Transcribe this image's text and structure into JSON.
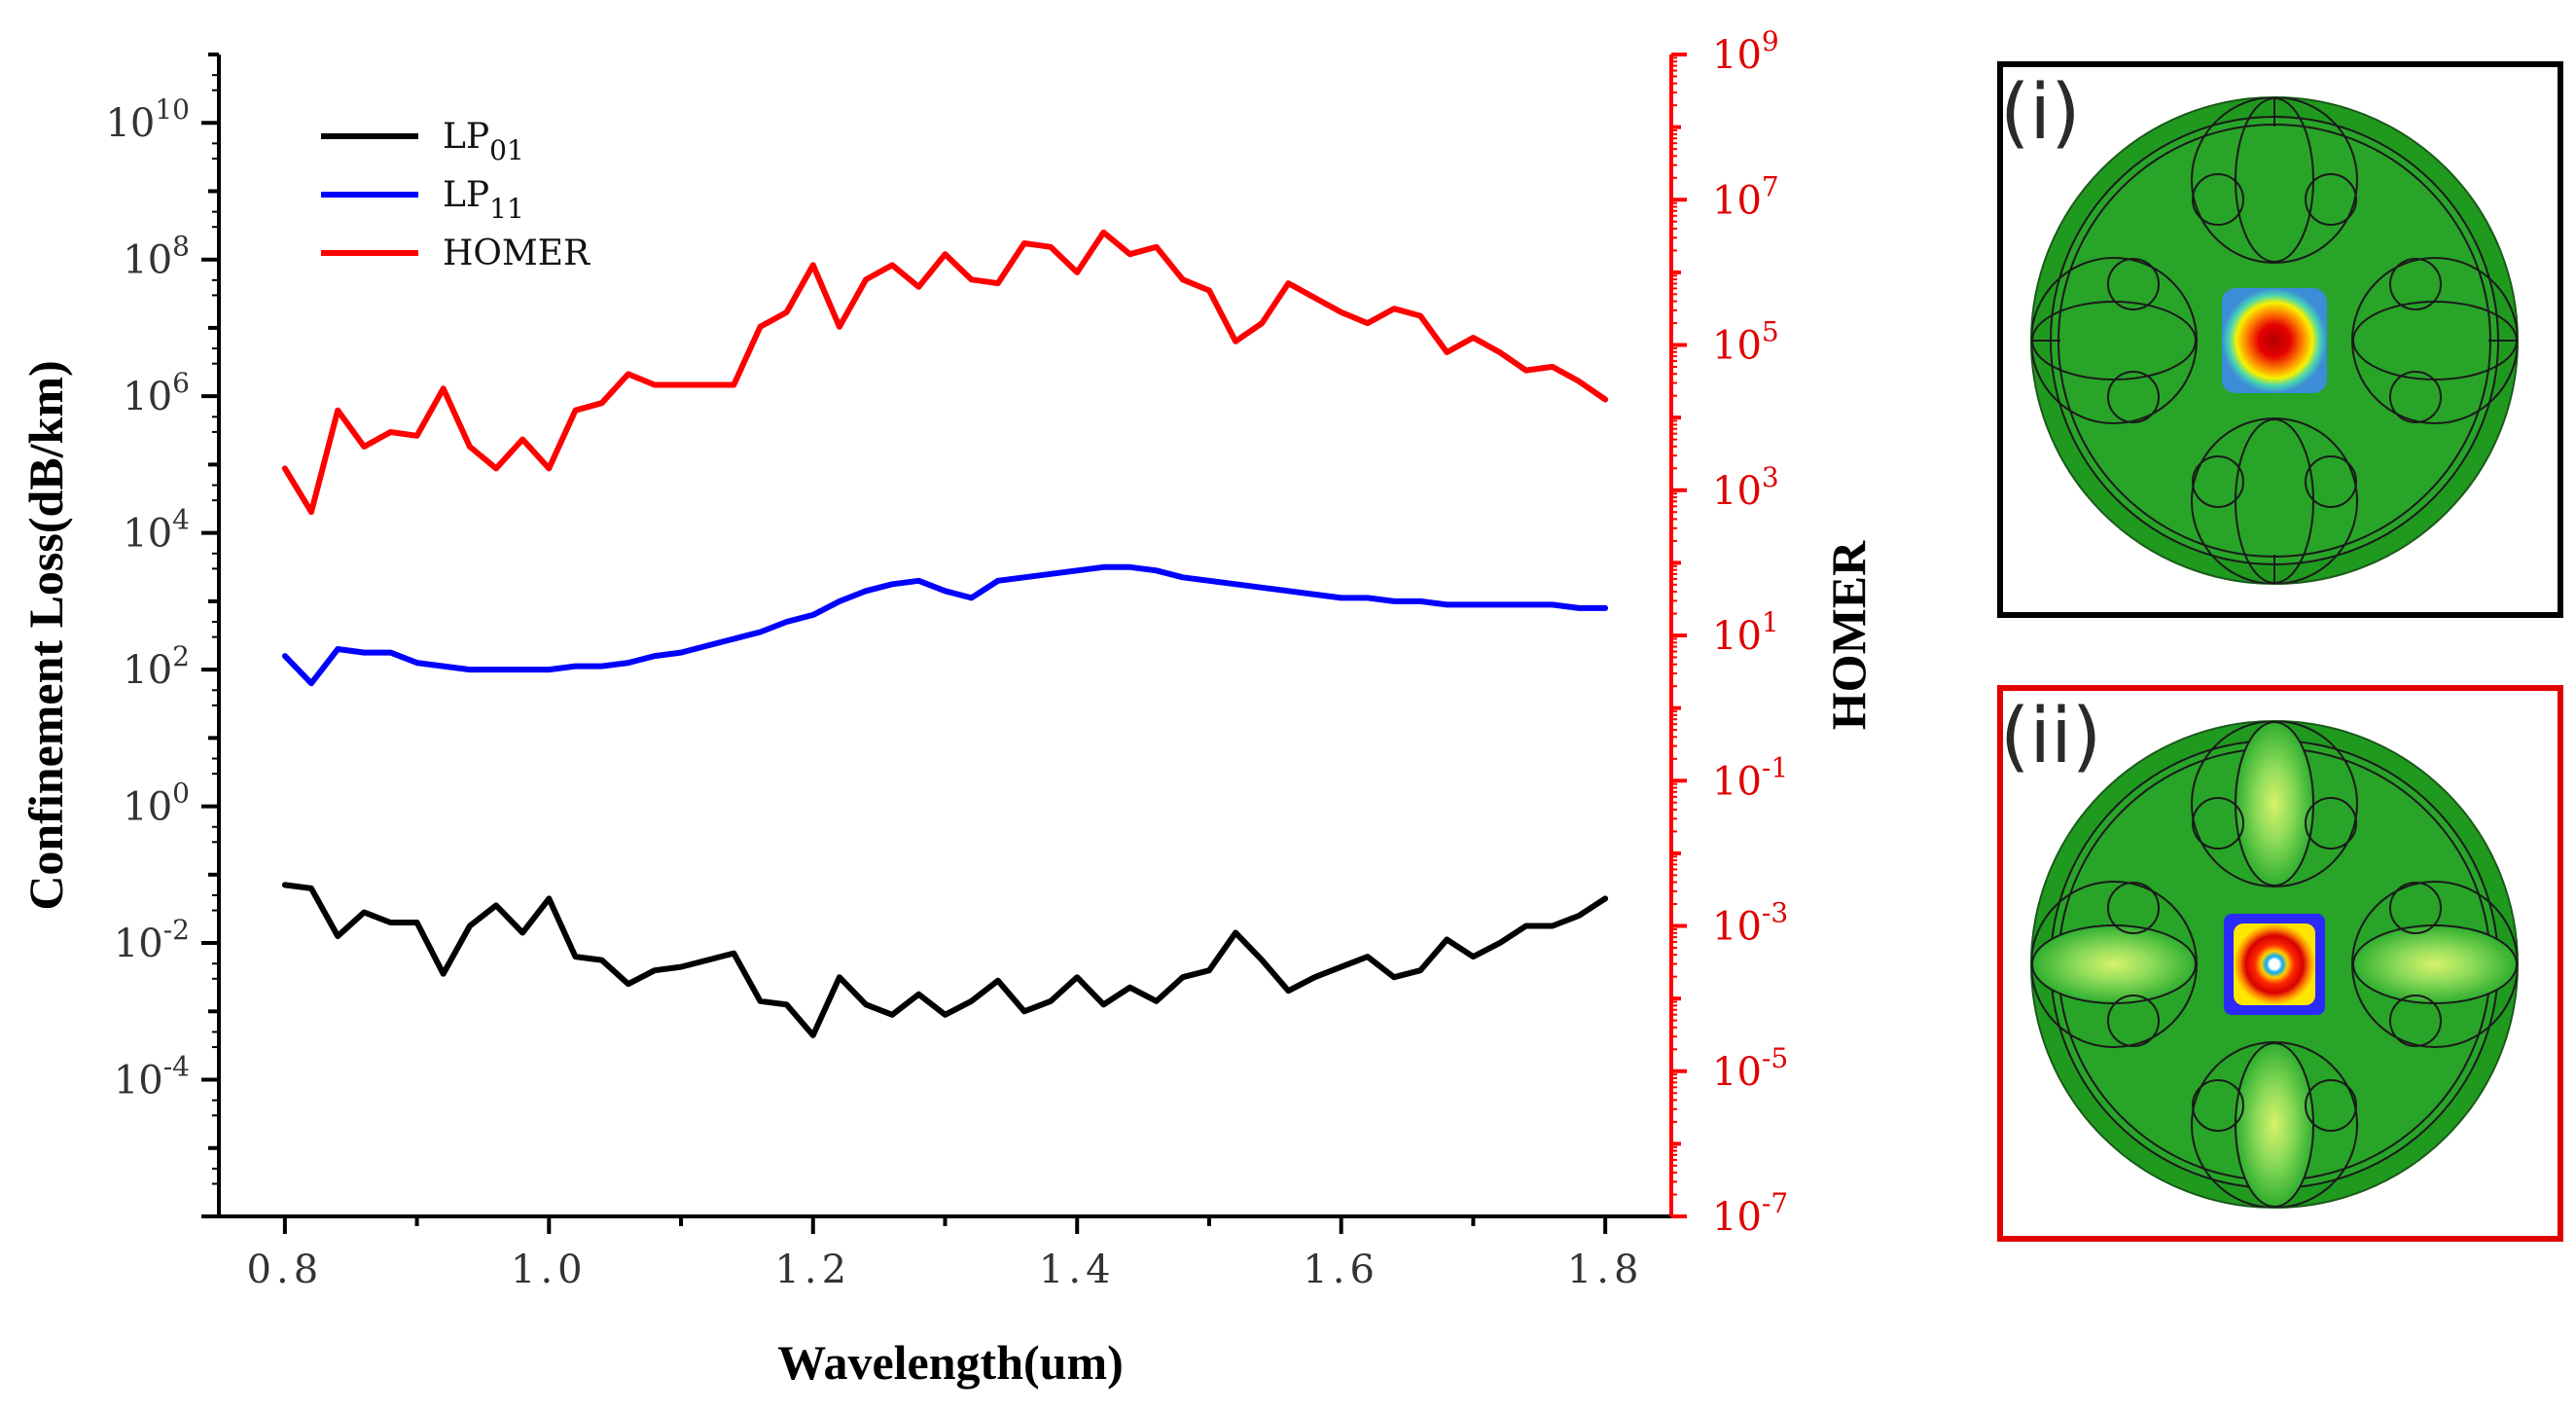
{
  "chart_data": {
    "type": "line",
    "xlabel": "Wavelength(um)",
    "ylabel_left": "Confinement Loss(dB/km)",
    "ylabel_right": "HOMER",
    "xlim": [
      0.75,
      1.85
    ],
    "ylim_left_log10": [
      -6,
      11
    ],
    "ylim_right_log10": [
      -7,
      9
    ],
    "x_ticks": [
      "0.8",
      "1.0",
      "1.2",
      "1.4",
      "1.6",
      "1.8"
    ],
    "left_ticks": [
      {
        "base": "10",
        "exp": "10"
      },
      {
        "base": "10",
        "exp": "8"
      },
      {
        "base": "10",
        "exp": "6"
      },
      {
        "base": "10",
        "exp": "4"
      },
      {
        "base": "10",
        "exp": "2"
      },
      {
        "base": "10",
        "exp": "0"
      },
      {
        "base": "10",
        "exp": "-2"
      },
      {
        "base": "10",
        "exp": "-4"
      }
    ],
    "right_ticks": [
      {
        "base": "10",
        "exp": "9"
      },
      {
        "base": "10",
        "exp": "7"
      },
      {
        "base": "10",
        "exp": "5"
      },
      {
        "base": "10",
        "exp": "3"
      },
      {
        "base": "10",
        "exp": "1"
      },
      {
        "base": "10",
        "exp": "-1"
      },
      {
        "base": "10",
        "exp": "-3"
      },
      {
        "base": "10",
        "exp": "-5"
      },
      {
        "base": "10",
        "exp": "-7"
      }
    ],
    "x": [
      0.8,
      0.82,
      0.84,
      0.86,
      0.88,
      0.9,
      0.92,
      0.94,
      0.96,
      0.98,
      1.0,
      1.02,
      1.04,
      1.06,
      1.08,
      1.1,
      1.12,
      1.14,
      1.16,
      1.18,
      1.2,
      1.22,
      1.24,
      1.26,
      1.28,
      1.3,
      1.32,
      1.34,
      1.36,
      1.38,
      1.4,
      1.42,
      1.44,
      1.46,
      1.48,
      1.5,
      1.52,
      1.54,
      1.56,
      1.58,
      1.6,
      1.62,
      1.64,
      1.66,
      1.68,
      1.7,
      1.72,
      1.74,
      1.76,
      1.78,
      1.8
    ],
    "series": [
      {
        "name": "LP01",
        "label_main": "LP",
        "label_sub": "01",
        "axis": "left",
        "color": "#000000",
        "log10_values": [
          -1.15,
          -1.2,
          -1.9,
          -1.55,
          -1.7,
          -1.7,
          -2.45,
          -1.75,
          -1.45,
          -1.85,
          -1.35,
          -2.2,
          -2.25,
          -2.6,
          -2.4,
          -2.35,
          -2.25,
          -2.15,
          -2.85,
          -2.9,
          -3.35,
          -2.5,
          -2.9,
          -3.05,
          -2.75,
          -3.05,
          -2.85,
          -2.55,
          -3.0,
          -2.85,
          -2.5,
          -2.9,
          -2.65,
          -2.85,
          -2.5,
          -2.4,
          -1.85,
          -2.25,
          -2.7,
          -2.5,
          -2.35,
          -2.2,
          -2.5,
          -2.4,
          -1.95,
          -2.2,
          -2.0,
          -1.75,
          -1.75,
          -1.6,
          -1.35
        ]
      },
      {
        "name": "LP11",
        "label_main": "LP",
        "label_sub": "11",
        "axis": "left",
        "color": "#0000ff",
        "log10_values": [
          2.2,
          1.8,
          2.3,
          2.25,
          2.25,
          2.1,
          2.05,
          2.0,
          2.0,
          2.0,
          2.0,
          2.05,
          2.05,
          2.1,
          2.2,
          2.25,
          2.35,
          2.45,
          2.55,
          2.7,
          2.8,
          3.0,
          3.15,
          3.25,
          3.3,
          3.15,
          3.05,
          3.3,
          3.35,
          3.4,
          3.45,
          3.5,
          3.5,
          3.45,
          3.35,
          3.3,
          3.25,
          3.2,
          3.15,
          3.1,
          3.05,
          3.05,
          3.0,
          3.0,
          2.95,
          2.95,
          2.95,
          2.95,
          2.95,
          2.9,
          2.9
        ]
      },
      {
        "name": "HOMER",
        "label_main": "HOMER",
        "label_sub": "",
        "axis": "right",
        "color": "#ff0000",
        "log10_values": [
          3.3,
          2.7,
          4.1,
          3.6,
          3.8,
          3.75,
          4.4,
          3.6,
          3.3,
          3.7,
          3.3,
          4.1,
          4.2,
          4.6,
          4.45,
          4.45,
          4.45,
          4.45,
          5.25,
          5.45,
          6.1,
          5.25,
          5.9,
          6.1,
          5.8,
          6.25,
          5.9,
          5.85,
          6.4,
          6.35,
          6.0,
          6.55,
          6.25,
          6.35,
          5.9,
          5.75,
          5.05,
          5.3,
          5.85,
          5.65,
          5.45,
          5.3,
          5.5,
          5.4,
          4.9,
          5.1,
          4.9,
          4.65,
          4.7,
          4.5,
          4.25
        ]
      }
    ]
  },
  "insets": [
    {
      "label": "(i)",
      "frame_color": "#000000",
      "mode": "fundamental"
    },
    {
      "label": "(ii)",
      "frame_color": "#e00000",
      "mode": "higher-order"
    }
  ]
}
